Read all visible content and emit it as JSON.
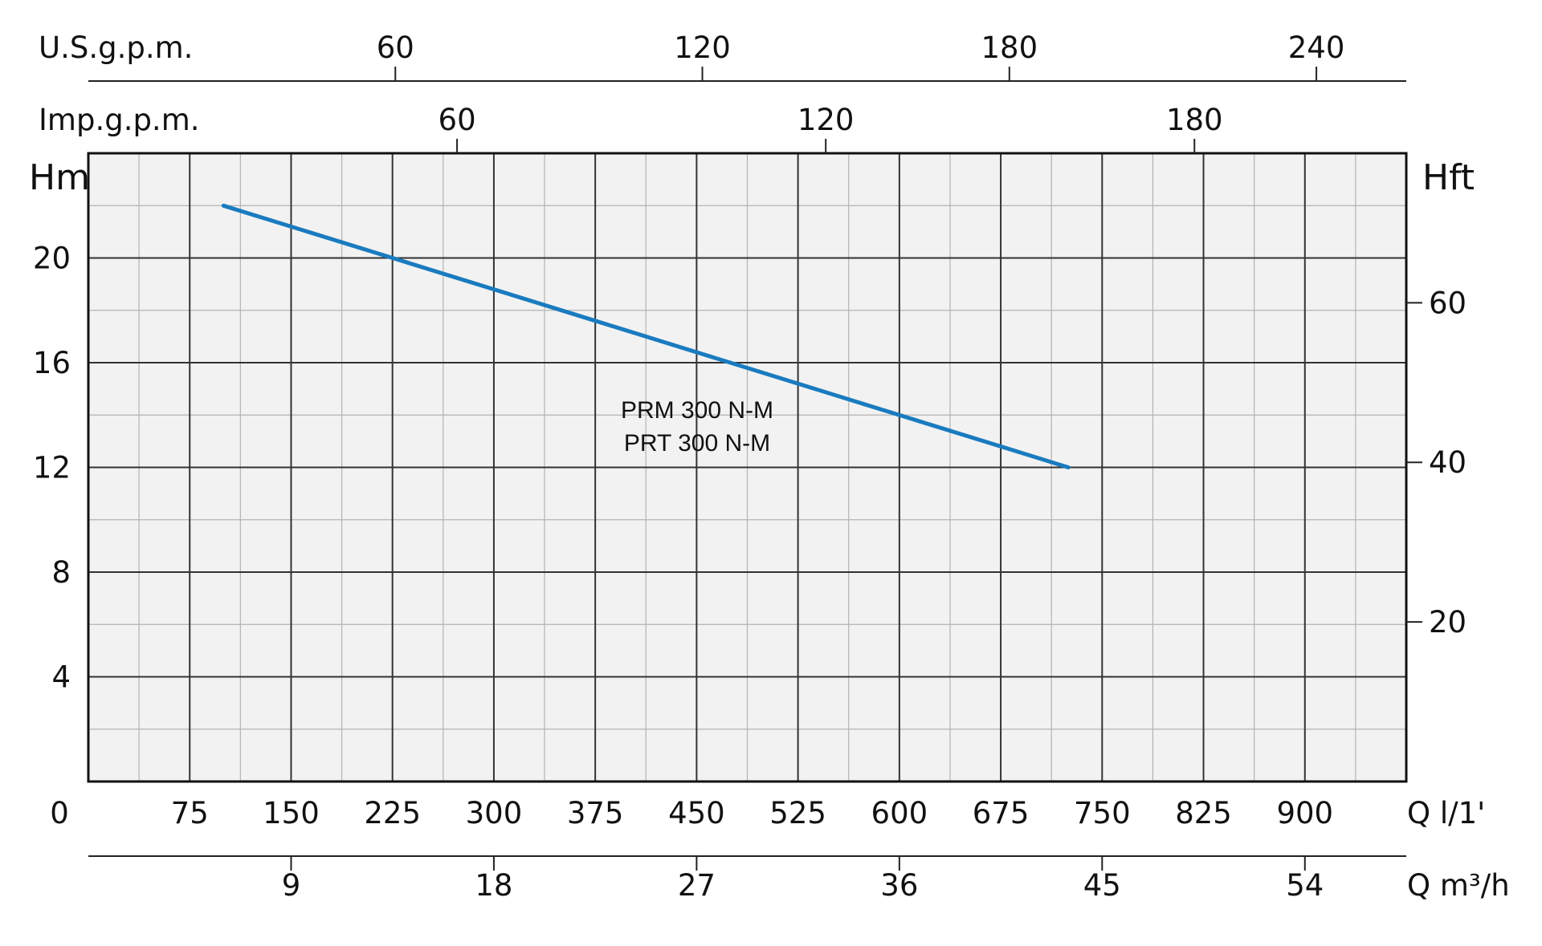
{
  "chart_data": {
    "type": "line",
    "title": "",
    "x_axis": {
      "label": "Q l/1'",
      "min": 0,
      "max": 975,
      "zero_label": "0",
      "ticks": [
        75,
        150,
        225,
        300,
        375,
        450,
        525,
        600,
        675,
        750,
        825,
        900
      ]
    },
    "y_axis": {
      "label": "Hm",
      "min": 0,
      "max": 24,
      "ticks": [
        4,
        8,
        12,
        16,
        20
      ]
    },
    "y2_axis": {
      "label": "Hft",
      "ticks": [
        20,
        40,
        60
      ]
    },
    "secondary_x_axes": [
      {
        "label": "U.S.g.p.m.",
        "position": "top",
        "ticks": [
          60,
          120,
          180,
          240
        ]
      },
      {
        "label": "Imp.g.p.m.",
        "position": "top",
        "ticks": [
          60,
          120,
          180
        ]
      },
      {
        "label": "Q m³/h",
        "position": "bottom",
        "ticks": [
          9,
          18,
          27,
          36,
          45,
          54
        ]
      }
    ],
    "grid": true,
    "series": [
      {
        "name": "PRM 300 N-M\nPRT 300 N-M",
        "label_lines": [
          "PRM 300 N-M",
          "PRT 300 N-M"
        ],
        "color": "#1a7bbf",
        "x": [
          100,
          225,
          300,
          375,
          450,
          525,
          600,
          675,
          725
        ],
        "y": [
          22,
          20,
          18.8,
          17.6,
          16.4,
          15.2,
          14,
          12.8,
          12
        ]
      }
    ]
  }
}
